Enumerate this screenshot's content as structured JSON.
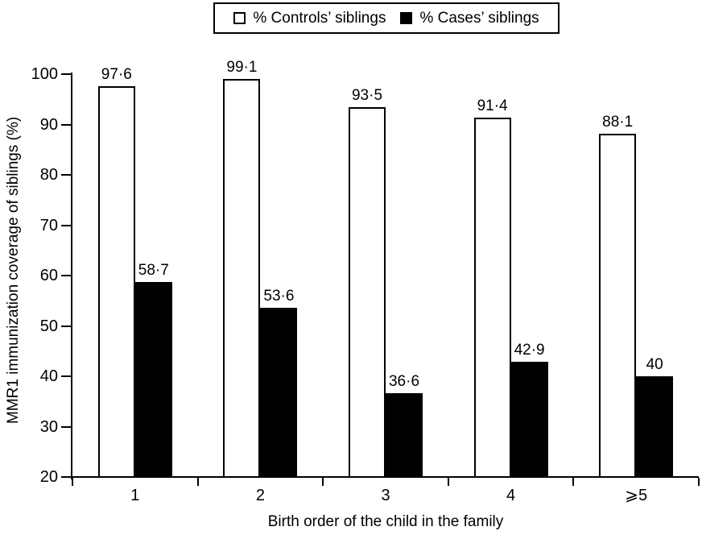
{
  "chart_data": {
    "type": "bar",
    "title": "",
    "xlabel": "Birth order of the child in the family",
    "ylabel": "MMR1 immunization coverage of siblings (%)",
    "ylim": [
      20,
      100
    ],
    "yticks": [
      20,
      30,
      40,
      50,
      60,
      70,
      80,
      90,
      100
    ],
    "categories": [
      "1",
      "2",
      "3",
      "4",
      "⩾5"
    ],
    "series": [
      {
        "name": "% Controls’ siblings",
        "color": "#ffffff",
        "border": "#000000",
        "values": [
          97.6,
          99.1,
          93.5,
          91.4,
          88.1
        ],
        "labels": [
          "97·6",
          "99·1",
          "93·5",
          "91·4",
          "88·1"
        ]
      },
      {
        "name": "% Cases’ siblings",
        "color": "#000000",
        "border": "#000000",
        "values": [
          58.7,
          53.6,
          36.6,
          42.9,
          40
        ],
        "labels": [
          "58·7",
          "53·6",
          "36·6",
          "42·9",
          "40"
        ]
      }
    ],
    "legend_position": "top-center",
    "grid": false,
    "axis_color": "#000000",
    "background": "#ffffff"
  }
}
